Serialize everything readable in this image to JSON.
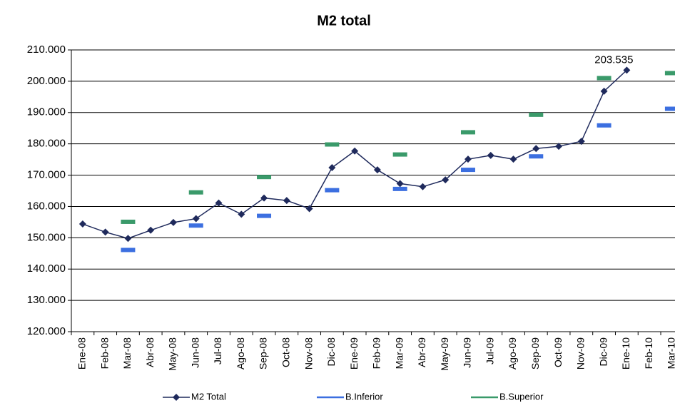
{
  "chart_data": {
    "type": "line",
    "title": "M2 total",
    "categories": [
      "Ene-08",
      "Feb-08",
      "Mar-08",
      "Abr-08",
      "May-08",
      "Jun-08",
      "Jul-08",
      "Ago-08",
      "Sep-08",
      "Oct-08",
      "Nov-08",
      "Dic-08",
      "Ene-09",
      "Feb-09",
      "Mar-09",
      "Abr-09",
      "May-09",
      "Jun-09",
      "Jul-09",
      "Ago-09",
      "Sep-09",
      "Oct-09",
      "Nov-09",
      "Dic-09",
      "Ene-10",
      "Feb-10",
      "Mar-10"
    ],
    "series": [
      {
        "name": "M2 Total",
        "color": "#1f2a5c",
        "style": "line-marker",
        "values": [
          154400,
          151800,
          149800,
          152400,
          154900,
          156100,
          161100,
          157500,
          162700,
          161900,
          159300,
          172400,
          177700,
          171700,
          167300,
          166300,
          168500,
          175100,
          176300,
          175100,
          178500,
          179200,
          180800,
          196800,
          203535,
          null,
          null
        ],
        "value_labels": [
          null,
          null,
          null,
          null,
          null,
          null,
          null,
          null,
          null,
          null,
          null,
          null,
          null,
          null,
          null,
          null,
          null,
          null,
          null,
          null,
          null,
          null,
          null,
          null,
          "203.535",
          null,
          null
        ]
      },
      {
        "name": "B.Inferior",
        "color": "#3c6fe0",
        "style": "dash",
        "values": [
          null,
          null,
          146100,
          null,
          null,
          153900,
          null,
          null,
          157000,
          null,
          null,
          165200,
          null,
          null,
          165600,
          null,
          null,
          171700,
          null,
          null,
          176000,
          null,
          null,
          185900,
          null,
          null,
          191200
        ]
      },
      {
        "name": "B.Superior",
        "color": "#3a9a6a",
        "style": "dash",
        "values": [
          null,
          null,
          155100,
          null,
          null,
          164500,
          null,
          null,
          169400,
          null,
          null,
          179800,
          null,
          null,
          176600,
          null,
          null,
          183700,
          null,
          null,
          189300,
          null,
          null,
          201000,
          null,
          null,
          202600
        ]
      }
    ],
    "ylim": [
      120000,
      210000
    ],
    "yticks": [
      {
        "value": 120000,
        "label": "120.000"
      },
      {
        "value": 130000,
        "label": "130.000"
      },
      {
        "value": 140000,
        "label": "140.000"
      },
      {
        "value": 150000,
        "label": "150.000"
      },
      {
        "value": 160000,
        "label": "160.000"
      },
      {
        "value": 170000,
        "label": "170.000"
      },
      {
        "value": 180000,
        "label": "180.000"
      },
      {
        "value": 190000,
        "label": "190.000"
      },
      {
        "value": 200000,
        "label": "200.000"
      },
      {
        "value": 210000,
        "label": "210.000"
      }
    ],
    "grid": true,
    "legend": "bottom"
  }
}
